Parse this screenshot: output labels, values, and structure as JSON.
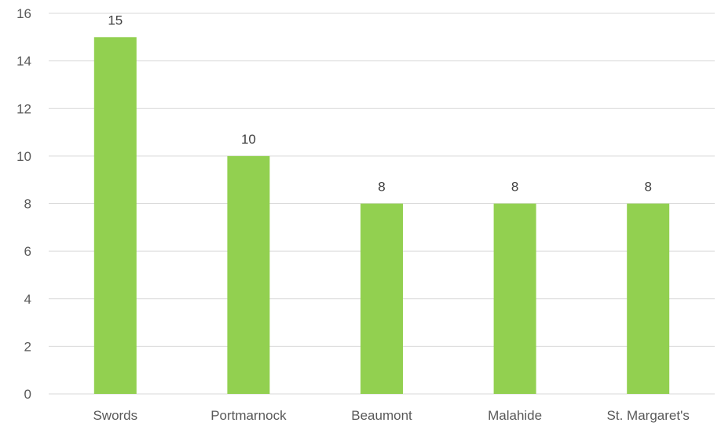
{
  "chart_data": {
    "type": "bar",
    "title": "",
    "xlabel": "",
    "ylabel": "",
    "categories": [
      "Swords",
      "Portmarnock",
      "Beaumont",
      "Malahide",
      "St. Margaret's"
    ],
    "values": [
      15,
      10,
      8,
      8,
      8
    ],
    "data_labels": [
      "15",
      "10",
      "8",
      "8",
      "8"
    ],
    "ylim": [
      0,
      16
    ],
    "yticks": [
      0,
      2,
      4,
      6,
      8,
      10,
      12,
      14,
      16
    ],
    "ytick_labels": [
      "0",
      "2",
      "4",
      "6",
      "8",
      "10",
      "12",
      "14",
      "16"
    ],
    "grid": true,
    "legend": "none",
    "bar_color": "#92d050",
    "grid_color": "#d9d9d9"
  }
}
